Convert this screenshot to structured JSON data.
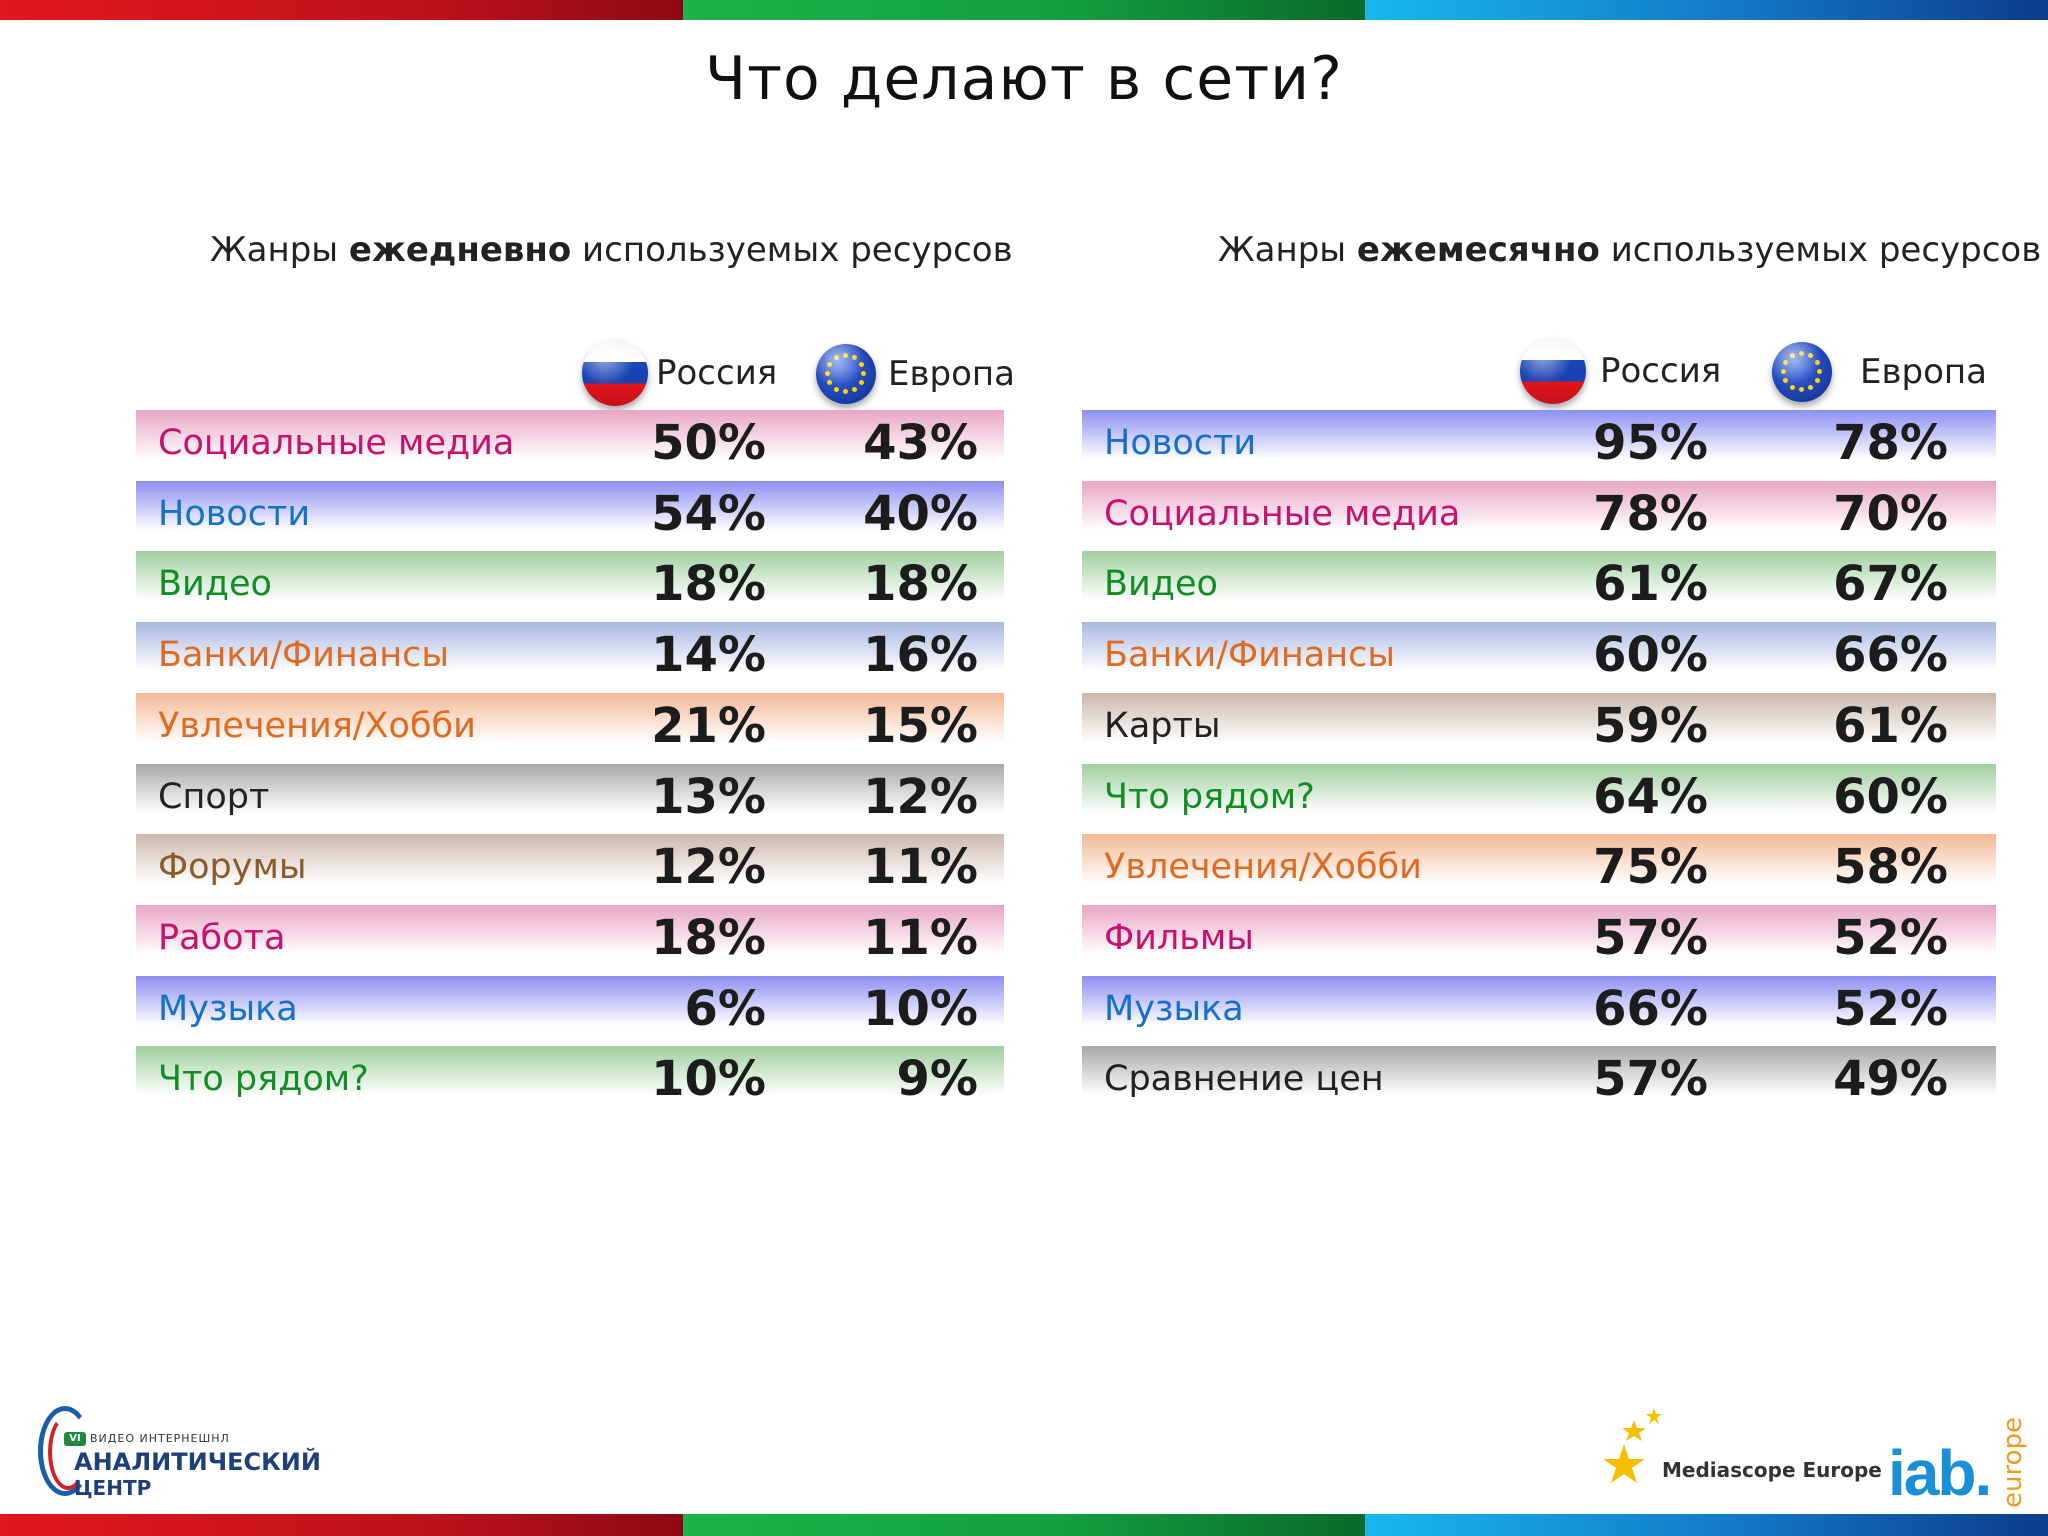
{
  "slide": {
    "title": "Что делают в сети?"
  },
  "daily": {
    "subtitle_pre": "Жанры ",
    "subtitle_bold": "ежедневно",
    "subtitle_post": " используемых ресурсов",
    "col1": "Россия",
    "col2": "Европа",
    "rows": [
      {
        "name": "Социальные медиа",
        "ru": "50%",
        "eu": "43%",
        "color": "#c8106e",
        "band": "#e8a6c4"
      },
      {
        "name": "Новости",
        "ru": "54%",
        "eu": "40%",
        "color": "#1670c8",
        "band": "#8d8ff2"
      },
      {
        "name": "Видео",
        "ru": "18%",
        "eu": "18%",
        "color": "#128c24",
        "band": "#9fcf9e"
      },
      {
        "name": "Банки/Финансы",
        "ru": "14%",
        "eu": "16%",
        "color": "#e06a20",
        "band": "#a8b8e2"
      },
      {
        "name": "Увлечения/Хобби",
        "ru": "21%",
        "eu": "15%",
        "color": "#e06a20",
        "band": "#f4b896"
      },
      {
        "name": "Спорт",
        "ru": "13%",
        "eu": "12%",
        "color": "#222222",
        "band": "#a8a8a8"
      },
      {
        "name": "Форумы",
        "ru": "12%",
        "eu": "11%",
        "color": "#8b5a2a",
        "band": "#cbb7aa"
      },
      {
        "name": "Работа",
        "ru": "18%",
        "eu": "11%",
        "color": "#c8106e",
        "band": "#e8a6c4"
      },
      {
        "name": "Музыка",
        "ru": "6%",
        "eu": "10%",
        "color": "#1670c8",
        "band": "#8d8ff2"
      },
      {
        "name": "Что рядом?",
        "ru": "10%",
        "eu": "9%",
        "color": "#128c24",
        "band": "#9fcf9e"
      }
    ]
  },
  "monthly": {
    "subtitle_pre": "Жанры ",
    "subtitle_bold": "ежемесячно",
    "subtitle_post": " используемых ресурсов",
    "col1": "Россия",
    "col2": "Европа",
    "rows": [
      {
        "name": "Новости",
        "ru": "95%",
        "eu": "78%",
        "color": "#1670c8",
        "band": "#8d8ff2"
      },
      {
        "name": "Социальные медиа",
        "ru": "78%",
        "eu": "70%",
        "color": "#c8106e",
        "band": "#e8a6c4"
      },
      {
        "name": "Видео",
        "ru": "61%",
        "eu": "67%",
        "color": "#128c24",
        "band": "#9fcf9e"
      },
      {
        "name": "Банки/Финансы",
        "ru": "60%",
        "eu": "66%",
        "color": "#e06a20",
        "band": "#a8b8e2"
      },
      {
        "name": "Карты",
        "ru": "59%",
        "eu": "61%",
        "color": "#222222",
        "band": "#cbb7aa"
      },
      {
        "name": "Что рядом?",
        "ru": "64%",
        "eu": "60%",
        "color": "#128c24",
        "band": "#9fcf9e"
      },
      {
        "name": "Увлечения/Хобби",
        "ru": "75%",
        "eu": "58%",
        "color": "#e06a20",
        "band": "#f4b896"
      },
      {
        "name": "Фильмы",
        "ru": "57%",
        "eu": "52%",
        "color": "#c8106e",
        "band": "#e8a6c4"
      },
      {
        "name": "Музыка",
        "ru": "66%",
        "eu": "52%",
        "color": "#1670c8",
        "band": "#8d8ff2"
      },
      {
        "name": "Сравнение цен",
        "ru": "57%",
        "eu": "49%",
        "color": "#222222",
        "band": "#a8a8a8"
      }
    ]
  },
  "footer": {
    "left_logo_small": "ВИДЕО ИНТЕРНЕШНЛ",
    "left_logo_line1": "АНАЛИТИЧЕСКИЙ",
    "left_logo_line2": "ЦЕНТР",
    "left_logo_badge": "VI",
    "mediascope": "Mediascope Europe",
    "iab": "iab.",
    "iab_europe": "europe"
  }
}
